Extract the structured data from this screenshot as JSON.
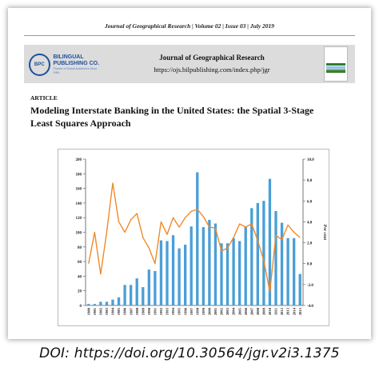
{
  "running_head": "Journal of Geographical Research | Volume 02 | Issue 03 | July 2019",
  "publisher": {
    "logo_mark": "BPC",
    "name_line1": "BILINGUAL",
    "name_line2": "PUBLISHING CO.",
    "tagline": "Pioneer of Global Academics Since 1984"
  },
  "journal": {
    "title": "Journal of Geographical Research",
    "url": "https://ojs.bilpublishing.com/index.php/jgr"
  },
  "article": {
    "label": "ARTICLE",
    "title_line1": "Modeling Interstate Banking in the United States: the Spatial 3-Stage",
    "title_line2": "Least Squares Approach"
  },
  "doi": "DOI: https://doi.org/10.30564/jgr.v2i3.1375",
  "colors": {
    "bar": "#4a9fd8",
    "line": "#ef8a2a",
    "banner": "#dcdcdc",
    "logo": "#1d4f9c"
  },
  "chart_data": {
    "type": "bar",
    "categories": [
      "1980",
      "1981",
      "1982",
      "1983",
      "1984",
      "1985",
      "1986",
      "1987",
      "1988",
      "1989",
      "1990",
      "1991",
      "1992",
      "1993",
      "1994",
      "1995",
      "1996",
      "1997",
      "1998",
      "1999",
      "2000",
      "2001",
      "2002",
      "2003",
      "2004",
      "2005",
      "2006",
      "2007",
      "2008",
      "2009",
      "2010",
      "2011",
      "2012",
      "2013",
      "2014",
      "2015"
    ],
    "series": [
      {
        "axis": "left",
        "type": "bar",
        "values": [
          2,
          2,
          5,
          5,
          8,
          11,
          28,
          28,
          37,
          25,
          49,
          47,
          89,
          88,
          96,
          78,
          83,
          108,
          182,
          107,
          117,
          112,
          85,
          85,
          92,
          88,
          107,
          133,
          140,
          143,
          173,
          129,
          113,
          92,
          92,
          43
        ]
      },
      {
        "axis": "right",
        "type": "line",
        "values": [
          0.0,
          3.0,
          -1.0,
          3.0,
          7.7,
          4.0,
          3.0,
          4.2,
          4.8,
          2.5,
          1.5,
          0.0,
          4.0,
          2.8,
          4.4,
          3.5,
          4.4,
          5.0,
          5.2,
          4.5,
          3.5,
          3.4,
          1.2,
          1.5,
          2.5,
          3.8,
          3.5,
          3.8,
          2.2,
          0.3,
          -2.7,
          2.7,
          2.3,
          3.7,
          3.0,
          2.5
        ]
      }
    ],
    "y_left": {
      "min": 0,
      "max": 200,
      "ticks": [
        "0",
        "20",
        "40",
        "60",
        "80",
        "100",
        "120",
        "140",
        "160",
        "180",
        "200"
      ]
    },
    "y_right": {
      "min": -4,
      "max": 10,
      "label": "Per cent",
      "ticks": [
        "-4.0",
        "-2.0",
        "0.0",
        "2.0",
        "4.0",
        "6.0",
        "8.0",
        "10.0"
      ]
    },
    "grid": false,
    "legend": "none"
  }
}
